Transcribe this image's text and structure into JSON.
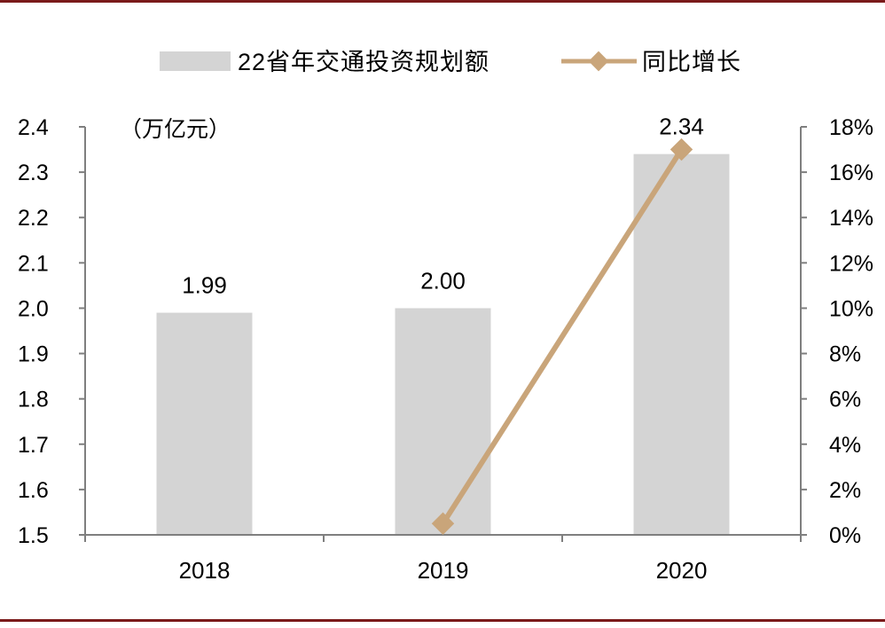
{
  "chart_data": {
    "type": "bar",
    "categories": [
      "2018",
      "2019",
      "2020"
    ],
    "series": [
      {
        "name": "22省年交通投资规划额",
        "type": "bar",
        "axis": "left",
        "values": [
          1.99,
          2.0,
          2.34
        ],
        "labels": [
          "1.99",
          "2.00",
          "2.34"
        ],
        "color": "#d4d4d4"
      },
      {
        "name": "同比增长",
        "type": "line",
        "axis": "right",
        "values": [
          null,
          0.5,
          17.0
        ],
        "color": "#c9a57a",
        "marker": "diamond"
      }
    ],
    "y_left": {
      "unit_label": "（万亿元）",
      "ylim": [
        1.5,
        2.4
      ],
      "ticks": [
        "2.4",
        "2.3",
        "2.2",
        "2.1",
        "2.0",
        "1.9",
        "1.8",
        "1.7",
        "1.6",
        "1.5"
      ],
      "tick_values": [
        2.4,
        2.3,
        2.2,
        2.1,
        2.0,
        1.9,
        1.8,
        1.7,
        1.6,
        1.5
      ]
    },
    "y_right": {
      "ylim": [
        0,
        18
      ],
      "ticks": [
        "18%",
        "16%",
        "14%",
        "12%",
        "10%",
        "8%",
        "6%",
        "4%",
        "2%",
        "0%"
      ],
      "tick_values": [
        18,
        16,
        14,
        12,
        10,
        8,
        6,
        4,
        2,
        0
      ]
    },
    "legend_position": "top-center",
    "grid": false,
    "frame_color": "#7a1a1a",
    "axis_color": "#7f7f7f"
  }
}
